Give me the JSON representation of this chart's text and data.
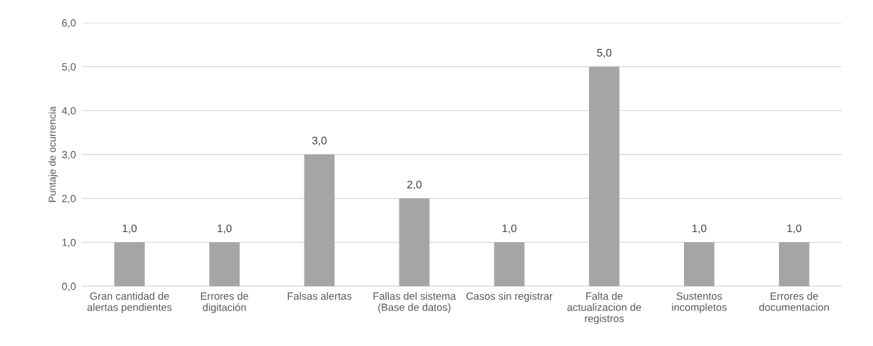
{
  "chart_data": {
    "type": "bar",
    "ylabel": "Puntaje de ocurrencia",
    "categories": [
      "Gran cantidad de alertas pendientes",
      "Errores de digitación",
      "Falsas alertas",
      "Fallas del sistema (Base de datos)",
      "Casos sin registrar",
      "Falta de actualizacion de registros",
      "Sustentos incompletos",
      "Errores de documentacion"
    ],
    "values": [
      1,
      1,
      3,
      2,
      1,
      5,
      1,
      1
    ],
    "value_labels": [
      "1,0",
      "1,0",
      "3,0",
      "2,0",
      "1,0",
      "5,0",
      "1,0",
      "1,0"
    ],
    "color": "#a5a5a5",
    "ylim": [
      0,
      6
    ],
    "yticks": [
      {
        "value": 0,
        "label": "0,0"
      },
      {
        "value": 1,
        "label": "1,0"
      },
      {
        "value": 2,
        "label": "2,0"
      },
      {
        "value": 3,
        "label": "3,0"
      },
      {
        "value": 4,
        "label": "4,0"
      },
      {
        "value": 5,
        "label": "5,0"
      },
      {
        "value": 6,
        "label": "6,0"
      }
    ],
    "grid": "y",
    "legend": false
  }
}
